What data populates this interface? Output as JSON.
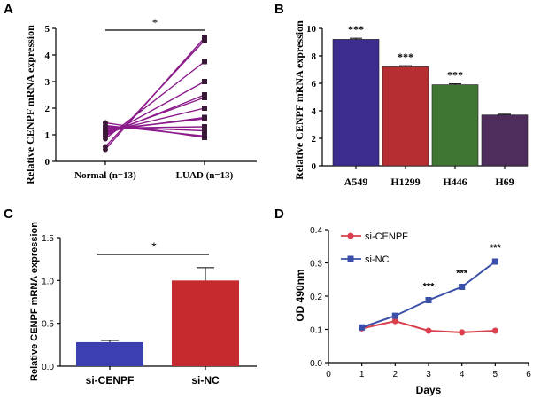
{
  "chart_data": [
    {
      "panel": "A",
      "type": "scatter",
      "subtype": "paired-points",
      "ylabel": "Relative CENPF mRNA expression",
      "ylim": [
        0,
        5
      ],
      "yticks": [
        "0",
        "1",
        "2",
        "3",
        "4",
        "5"
      ],
      "categories": [
        "Normal (n=13)",
        "LUAD (n=13)"
      ],
      "significance": "*",
      "pairs": [
        [
          0.45,
          4.65
        ],
        [
          0.55,
          4.55
        ],
        [
          0.85,
          3.75
        ],
        [
          0.95,
          3.0
        ],
        [
          1.0,
          2.5
        ],
        [
          1.05,
          2.4
        ],
        [
          1.1,
          2.0
        ],
        [
          1.15,
          1.65
        ],
        [
          1.2,
          1.6
        ],
        [
          1.25,
          1.3
        ],
        [
          1.3,
          1.15
        ],
        [
          1.35,
          0.95
        ],
        [
          1.45,
          0.9
        ]
      ],
      "color": "#8B1A8B"
    },
    {
      "panel": "B",
      "type": "bar",
      "ylabel": "Relative CENPF mRNA expression",
      "ylim": [
        0,
        10
      ],
      "yticks": [
        "0",
        "2",
        "4",
        "6",
        "8",
        "10"
      ],
      "categories": [
        "A549",
        "H1299",
        "H446",
        "H69"
      ],
      "values": [
        9.2,
        7.2,
        5.9,
        3.7
      ],
      "errors": [
        0.08,
        0.08,
        0.06,
        0.05
      ],
      "significance": [
        "***",
        "***",
        "***",
        ""
      ],
      "colors": [
        "#3B2C8E",
        "#B52F32",
        "#3F7634",
        "#4E2D5C"
      ]
    },
    {
      "panel": "C",
      "type": "bar",
      "ylabel": "Relative CENPF mRNA expression",
      "ylim": [
        0,
        1.5
      ],
      "yticks": [
        "0.0",
        "0.5",
        "1.0",
        "1.5"
      ],
      "categories": [
        "si-CENPF",
        "si-NC"
      ],
      "values": [
        0.28,
        1.0
      ],
      "errors": [
        0.02,
        0.15
      ],
      "significance": "*",
      "colors": [
        "#3C3FB0",
        "#C52A2E"
      ]
    },
    {
      "panel": "D",
      "type": "line",
      "xlabel": "Days",
      "ylabel": "OD 490nm",
      "xlim": [
        0,
        6
      ],
      "ylim": [
        0,
        0.4
      ],
      "xticks": [
        "0",
        "1",
        "2",
        "3",
        "4",
        "5",
        "6"
      ],
      "yticks": [
        "0.0",
        "0.1",
        "0.2",
        "0.3",
        "0.4"
      ],
      "legend_position": "top-left",
      "series": [
        {
          "name": "si-CENPF",
          "x": [
            1,
            2,
            3,
            4,
            5
          ],
          "values": [
            0.103,
            0.125,
            0.096,
            0.091,
            0.096
          ],
          "color": "#D9404E",
          "marker": "circle"
        },
        {
          "name": "si-NC",
          "x": [
            1,
            2,
            3,
            4,
            5
          ],
          "values": [
            0.106,
            0.141,
            0.188,
            0.228,
            0.304
          ],
          "color": "#3A4FA8",
          "marker": "square"
        }
      ],
      "significance_x": [
        3,
        4,
        5
      ],
      "significance": [
        "***",
        "***",
        "***"
      ]
    }
  ],
  "panel_labels": [
    "A",
    "B",
    "C",
    "D"
  ]
}
